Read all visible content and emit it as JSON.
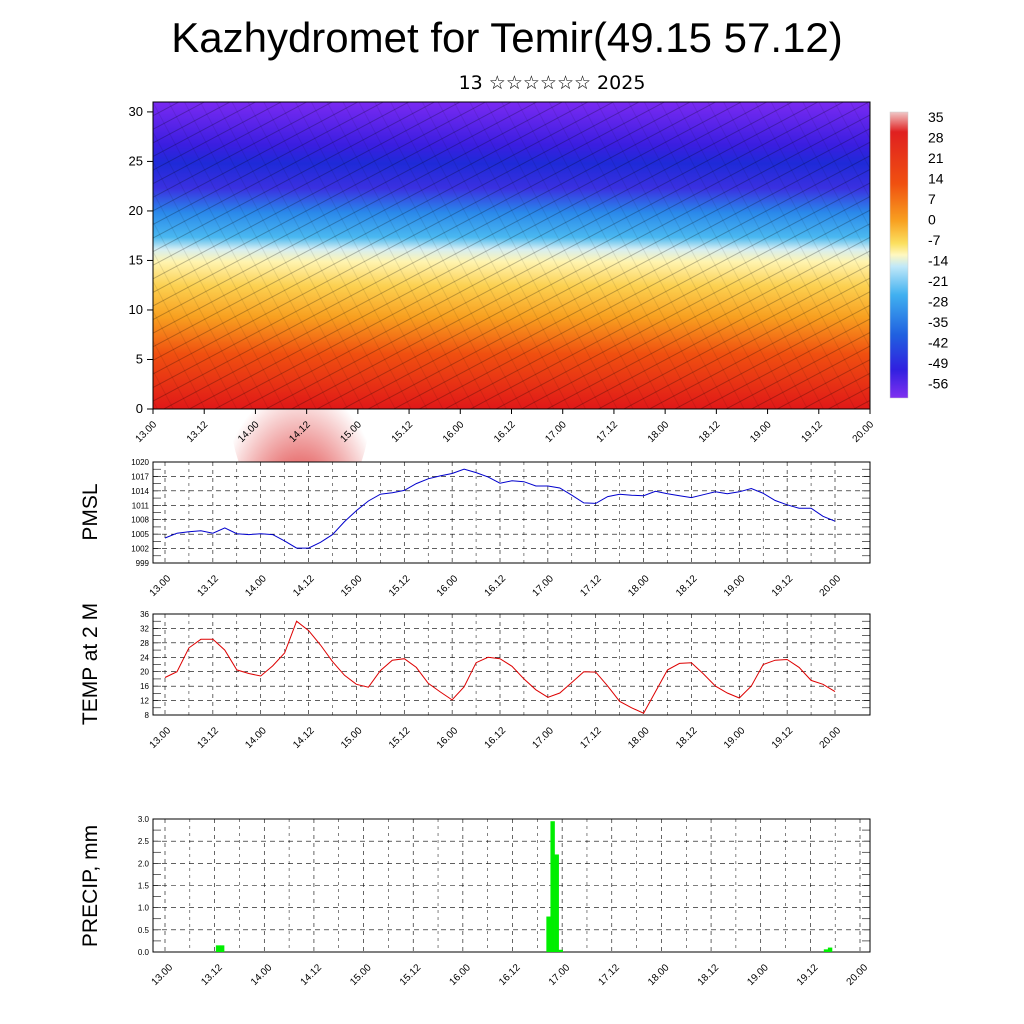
{
  "page": {
    "title": "Kazhydromet for Temir(49.15 57.12)",
    "subtitle": "13 ☆☆☆☆☆☆ 2025"
  },
  "chart_data": [
    {
      "type": "heatmap",
      "name": "vertical-section",
      "yticks": [
        0,
        5,
        10,
        15,
        20,
        25,
        30
      ],
      "ylim": [
        0,
        31
      ],
      "xticks": [
        "13.00",
        "13.12",
        "14.00",
        "14.12",
        "15.00",
        "15.12",
        "16.00",
        "16.12",
        "17.00",
        "17.12",
        "18.00",
        "18.12",
        "19.00",
        "19.12",
        "20.00"
      ],
      "colorbar": {
        "labels": [
          "35",
          "28",
          "21",
          "14",
          "7",
          "0",
          "-7",
          "-14",
          "-21",
          "-28",
          "-35",
          "-42",
          "-49",
          "-56"
        ],
        "stops": [
          "#f0c8c8",
          "#e02020",
          "#f05010",
          "#f8a020",
          "#fbe060",
          "#fff8c0",
          "#c0e8f8",
          "#40b0f0",
          "#2060e0",
          "#3020e0",
          "#8030f0"
        ]
      }
    },
    {
      "type": "line",
      "name": "pmsl",
      "ylabel": "PMSL",
      "color": "#0000cc",
      "ylim": [
        999,
        1020
      ],
      "yticks": [
        999,
        1002,
        1005,
        1008,
        1011,
        1014,
        1017,
        1020
      ],
      "xticks": [
        "13.00",
        "13.12",
        "14.00",
        "14.12",
        "15.00",
        "15.12",
        "16.00",
        "16.12",
        "17.00",
        "17.12",
        "18.00",
        "18.12",
        "19.00",
        "19.12",
        "20.00"
      ],
      "values": [
        1004.2,
        1005.2,
        1005.5,
        1005.7,
        1005.2,
        1006.3,
        1005.1,
        1004.9,
        1005.1,
        1004.9,
        1003.6,
        1002.1,
        1002.1,
        1003.3,
        1004.9,
        1007.6,
        1009.9,
        1011.9,
        1013.3,
        1013.6,
        1014.1,
        1015.5,
        1016.5,
        1017.1,
        1017.6,
        1018.5,
        1017.8,
        1016.9,
        1015.6,
        1016.1,
        1015.9,
        1015.0,
        1015.0,
        1014.6,
        1013.1,
        1011.5,
        1011.4,
        1012.8,
        1013.3,
        1013.1,
        1013.0,
        1013.9,
        1013.4,
        1013.0,
        1012.6,
        1013.2,
        1013.8,
        1013.4,
        1013.8,
        1014.5,
        1013.5,
        1012.0,
        1011.1,
        1010.4,
        1010.4,
        1008.7,
        1007.7
      ]
    },
    {
      "type": "line",
      "name": "temp",
      "ylabel": "TEMP at 2 M",
      "color": "#dd0000",
      "ylim": [
        8,
        36
      ],
      "yticks": [
        8,
        12,
        16,
        20,
        24,
        28,
        32,
        36
      ],
      "xticks": [
        "13.00",
        "13.12",
        "14.00",
        "14.12",
        "15.00",
        "15.12",
        "16.00",
        "16.12",
        "17.00",
        "17.12",
        "18.00",
        "18.12",
        "19.00",
        "19.12",
        "20.00"
      ],
      "values": [
        18.4,
        20.0,
        26.6,
        29.0,
        29.0,
        26.0,
        20.5,
        19.5,
        18.8,
        21.6,
        25.2,
        34.0,
        31.4,
        27.4,
        22.8,
        19.0,
        16.5,
        15.7,
        20.3,
        23.2,
        23.6,
        21.2,
        16.8,
        14.4,
        12.2,
        15.8,
        22.5,
        24.0,
        23.6,
        21.5,
        18.0,
        15.0,
        12.9,
        14.1,
        17.0,
        20.0,
        19.9,
        16.0,
        11.8,
        10.0,
        8.5,
        14.5,
        20.5,
        22.3,
        22.5,
        19.4,
        16.0,
        14.1,
        12.7,
        16.0,
        22.0,
        23.2,
        23.4,
        21.2,
        17.6,
        16.5,
        14.5
      ]
    },
    {
      "type": "bar",
      "name": "precip",
      "ylabel": "PRECIP, mm",
      "color": "#00ee00",
      "ylim": [
        0,
        3.0
      ],
      "yticks": [
        "0.0",
        "0.5",
        "1.0",
        "1.5",
        "2.0",
        "2.5",
        "3.0"
      ],
      "xticks": [
        "13.00",
        "13.12",
        "14.00",
        "14.12",
        "15.00",
        "15.12",
        "16.00",
        "16.12",
        "17.00",
        "17.12",
        "18.00",
        "18.12",
        "19.00",
        "19.12",
        "20.00"
      ],
      "values": [
        0,
        0,
        0,
        0,
        0,
        0,
        0,
        0,
        0,
        0,
        0,
        0.15,
        0.15,
        0,
        0,
        0,
        0,
        0,
        0,
        0,
        0,
        0,
        0,
        0,
        0,
        0,
        0,
        0,
        0,
        0,
        0,
        0,
        0,
        0,
        0,
        0,
        0,
        0,
        0,
        0,
        0,
        0,
        0,
        0,
        0,
        0,
        0,
        0,
        0,
        0,
        0,
        0,
        0,
        0,
        0,
        0,
        0,
        0,
        0,
        0,
        0,
        0,
        0,
        0,
        0,
        0,
        0,
        0,
        0,
        0,
        0,
        0,
        0,
        0,
        0,
        0,
        0,
        0,
        0,
        0,
        0,
        0,
        0,
        0,
        0,
        0,
        0,
        0,
        0,
        0,
        0,
        0,
        0.8,
        2.95,
        2.2,
        0.05,
        0,
        0,
        0,
        0,
        0,
        0,
        0,
        0,
        0,
        0,
        0,
        0,
        0,
        0,
        0,
        0,
        0,
        0,
        0,
        0,
        0,
        0,
        0,
        0,
        0,
        0,
        0,
        0,
        0,
        0,
        0,
        0,
        0,
        0,
        0,
        0,
        0,
        0,
        0,
        0,
        0,
        0,
        0,
        0,
        0,
        0,
        0,
        0,
        0,
        0,
        0,
        0,
        0,
        0,
        0,
        0,
        0,
        0,
        0,
        0,
        0,
        0,
        0,
        0,
        0.06,
        0.1
      ]
    }
  ]
}
